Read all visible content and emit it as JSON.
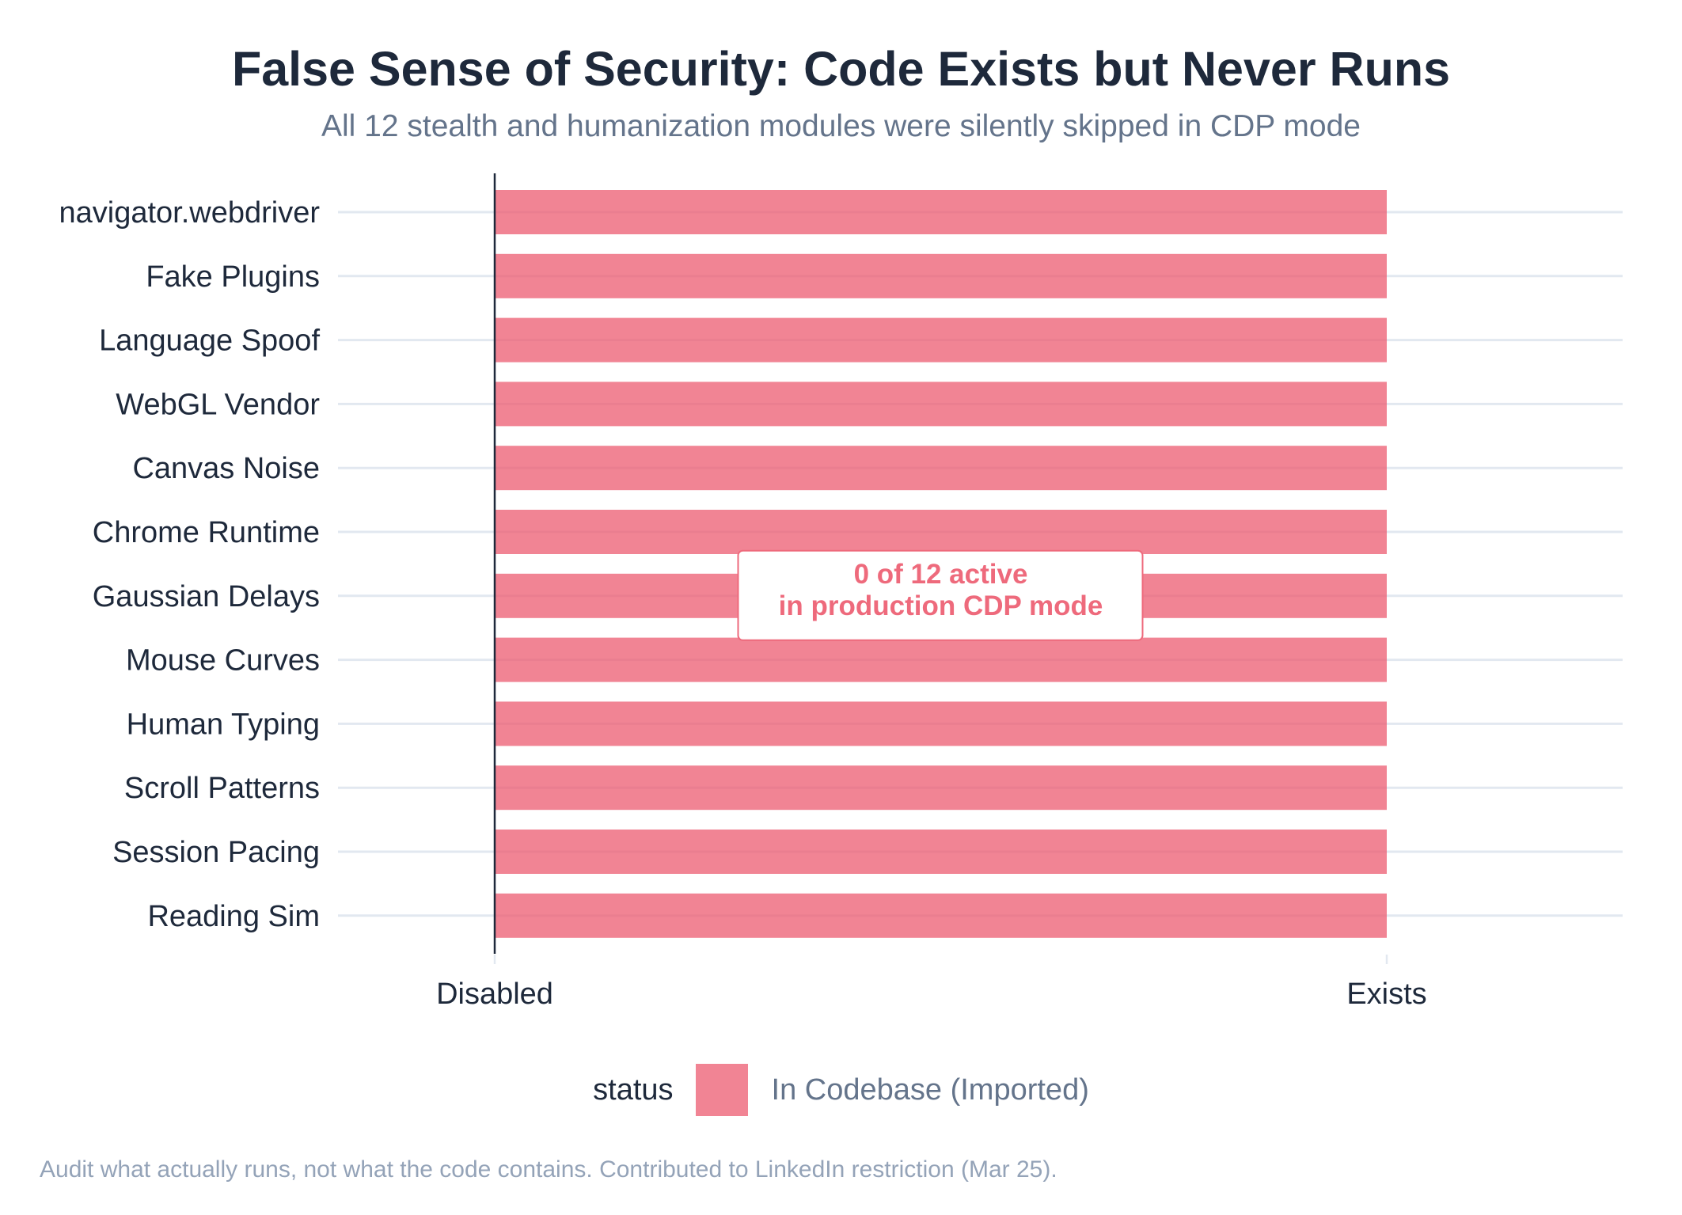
{
  "title": "False Sense of Security: Code Exists but Never Runs",
  "subtitle": "All 12 stealth and humanization modules were silently skipped in CDP mode",
  "footer": "Audit what actually runs, not what the code contains. Contributed to LinkedIn restriction (Mar 25).",
  "colors": {
    "bar": "#EC5B70",
    "bar_opacity": 0.75,
    "annotation": "#EE6A7C",
    "grid": "#E2E8F0",
    "axis": "#1E293B",
    "text": "#1E293B",
    "muted": "#64748B"
  },
  "chart_data": {
    "type": "bar",
    "orientation": "horizontal",
    "title": "False Sense of Security: Code Exists but Never Runs",
    "subtitle": "All 12 stealth and humanization modules were silently skipped in CDP mode",
    "xlabel": "",
    "ylabel": "",
    "xlim": [
      0,
      1
    ],
    "x_ticks": [
      {
        "value": 0,
        "label": "Disabled"
      },
      {
        "value": 1,
        "label": "Exists"
      }
    ],
    "categories": [
      "navigator.webdriver",
      "Fake Plugins",
      "Language Spoof",
      "WebGL Vendor",
      "Canvas Noise",
      "Chrome Runtime",
      "Gaussian Delays",
      "Mouse Curves",
      "Human Typing",
      "Scroll Patterns",
      "Session Pacing",
      "Reading Sim"
    ],
    "series": [
      {
        "name": "In Codebase (Imported)",
        "values": [
          1,
          1,
          1,
          1,
          1,
          1,
          1,
          1,
          1,
          1,
          1,
          1
        ]
      }
    ],
    "grid": "horizontal",
    "legend": {
      "title": "status",
      "position": "bottom",
      "entries": [
        "In Codebase (Imported)"
      ]
    },
    "annotation": {
      "lines": [
        "0 of 12 active",
        "in production CDP mode"
      ],
      "x": 0.5,
      "y_category": "Gaussian Delays"
    }
  }
}
